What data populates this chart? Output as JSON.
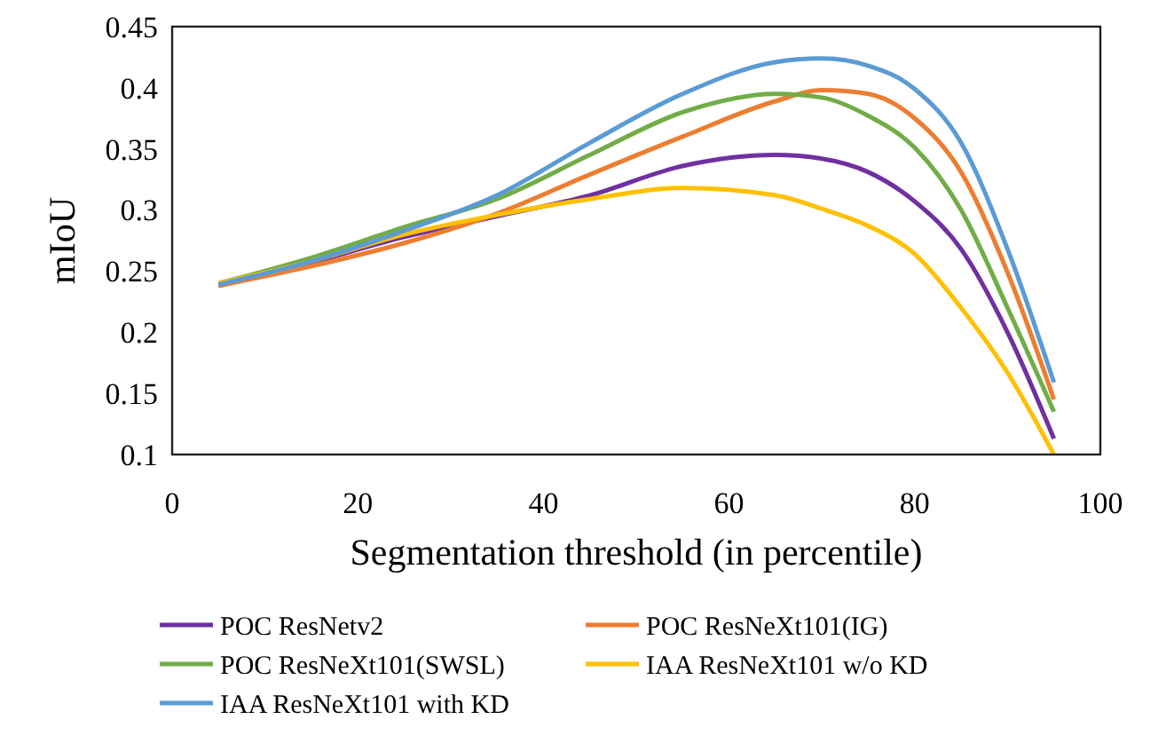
{
  "chart_data": {
    "type": "line",
    "xlabel": "Segmentation threshold (in percentile)",
    "ylabel": "mIoU",
    "xlim": [
      0,
      100
    ],
    "xticks": [
      0,
      20,
      40,
      60,
      80,
      100
    ],
    "ylim": [
      0.1,
      0.45
    ],
    "yticks": [
      0.1,
      0.15,
      0.2,
      0.25,
      0.3,
      0.35,
      0.4,
      0.45
    ],
    "grid": false,
    "legend": "bottom",
    "marker": "none",
    "line_style": "solid",
    "x": [
      5,
      15,
      25,
      35,
      45,
      55,
      65,
      70,
      75,
      80,
      85,
      90,
      95
    ],
    "series": [
      {
        "name": "POC ResNetv2",
        "color": "#7030a0",
        "values": [
          0.238,
          0.257,
          0.278,
          0.295,
          0.312,
          0.336,
          0.345,
          0.342,
          0.331,
          0.307,
          0.268,
          0.2,
          0.113
        ]
      },
      {
        "name": "POC ResNeXt101(IG)",
        "color": "#ed7d31",
        "values": [
          0.238,
          0.254,
          0.273,
          0.297,
          0.329,
          0.36,
          0.389,
          0.398,
          0.395,
          0.375,
          0.331,
          0.249,
          0.145
        ]
      },
      {
        "name": "POC ResNeXt101(SWSL)",
        "color": "#70ad47",
        "values": [
          0.24,
          0.261,
          0.286,
          0.309,
          0.345,
          0.38,
          0.395,
          0.392,
          0.377,
          0.351,
          0.3,
          0.22,
          0.135
        ]
      },
      {
        "name": "IAA ResNeXt101 w/o KD",
        "color": "#ffc000",
        "values": [
          0.24,
          0.258,
          0.28,
          0.296,
          0.309,
          0.318,
          0.312,
          0.301,
          0.287,
          0.264,
          0.22,
          0.167,
          0.1
        ]
      },
      {
        "name": "IAA ResNeXt101 with KD",
        "color": "#5b9bd5",
        "values": [
          0.239,
          0.258,
          0.283,
          0.312,
          0.355,
          0.395,
          0.421,
          0.424,
          0.418,
          0.399,
          0.355,
          0.268,
          0.159
        ]
      }
    ]
  }
}
